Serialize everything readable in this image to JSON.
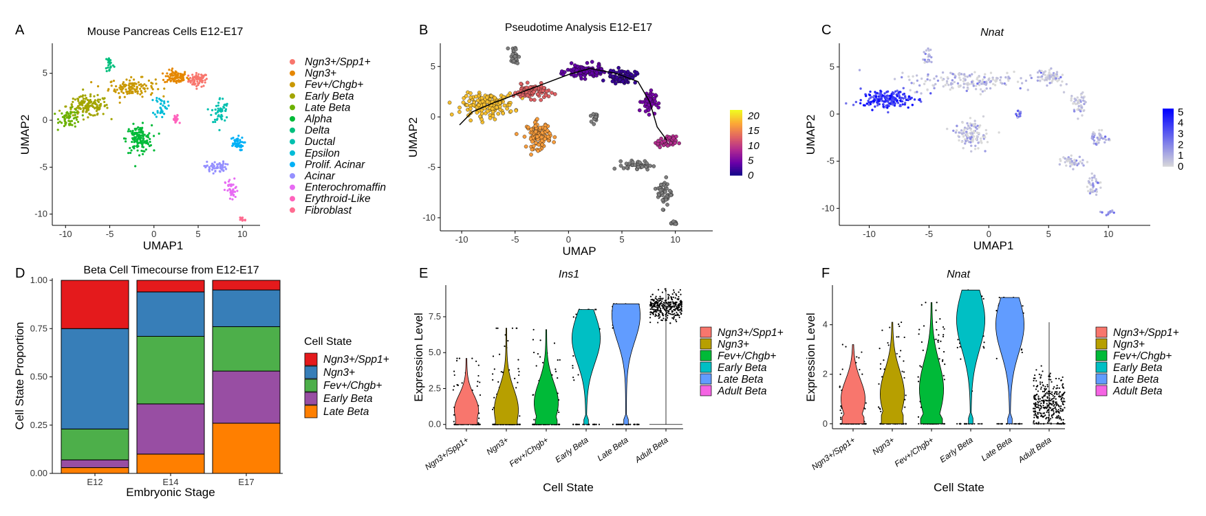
{
  "panel_labels": [
    "A",
    "B",
    "C",
    "D",
    "E",
    "F"
  ],
  "legend_state_title": "Cell State",
  "chart_data": [
    {
      "id": "A",
      "type": "scatter",
      "title": "Mouse Pancreas Cells E12-E17",
      "xlabel": "UMAP1",
      "ylabel": "UMAP2",
      "xlim": [
        -11.5,
        12
      ],
      "ylim": [
        -11.2,
        8.2
      ],
      "xticks": [
        -10,
        -5,
        0,
        5,
        10
      ],
      "yticks": [
        5,
        0,
        -5,
        -10
      ],
      "legend_position": "right",
      "series": [
        {
          "name": "Ngn3+/Spp1+",
          "color": "#F8766D",
          "center": [
            5.0,
            4.3
          ],
          "spread": [
            0.9,
            0.6
          ],
          "n": 70
        },
        {
          "name": "Ngn3+",
          "color": "#E58700",
          "center": [
            2.5,
            4.6
          ],
          "spread": [
            1.1,
            0.6
          ],
          "n": 90
        },
        {
          "name": "Fev+/Chgb+",
          "color": "#C99800",
          "center": [
            -2.5,
            3.5
          ],
          "spread": [
            2.2,
            0.8
          ],
          "n": 120
        },
        {
          "name": "Early Beta",
          "color": "#A3A500",
          "center": [
            -7.5,
            1.5
          ],
          "spread": [
            2.0,
            0.9
          ],
          "n": 150
        },
        {
          "name": "Late Beta",
          "color": "#6BB100",
          "center": [
            -9.5,
            0.2
          ],
          "spread": [
            1.0,
            0.8
          ],
          "n": 60
        },
        {
          "name": "Alpha",
          "color": "#00BA38",
          "center": [
            -1.7,
            -2.0
          ],
          "spread": [
            1.2,
            1.2
          ],
          "n": 140
        },
        {
          "name": "Delta",
          "color": "#00BF7D",
          "center": [
            -5.0,
            6.0
          ],
          "spread": [
            0.4,
            0.8
          ],
          "n": 25
        },
        {
          "name": "Ductal",
          "color": "#00C0AF",
          "center": [
            7.5,
            1.0
          ],
          "spread": [
            0.8,
            1.2
          ],
          "n": 50
        },
        {
          "name": "Epsilon",
          "color": "#00BCD8",
          "center": [
            0.8,
            1.5
          ],
          "spread": [
            0.6,
            1.0
          ],
          "n": 35
        },
        {
          "name": "Prolif. Acinar",
          "color": "#00B0F6",
          "center": [
            9.3,
            -2.5
          ],
          "spread": [
            0.7,
            0.6
          ],
          "n": 45
        },
        {
          "name": "Acinar",
          "color": "#9590FF",
          "center": [
            7.0,
            -5.0
          ],
          "spread": [
            1.0,
            0.5
          ],
          "n": 55
        },
        {
          "name": "Enterochromaffin",
          "color": "#E76BF3",
          "center": [
            8.8,
            -7.5
          ],
          "spread": [
            0.6,
            1.0
          ],
          "n": 40
        },
        {
          "name": "Erythroid-Like",
          "color": "#FF62BC",
          "center": [
            2.5,
            0.0
          ],
          "spread": [
            0.3,
            0.5
          ],
          "n": 18
        },
        {
          "name": "Fibroblast",
          "color": "#FF6C91",
          "center": [
            10.0,
            -10.5
          ],
          "spread": [
            0.4,
            0.2
          ],
          "n": 15
        }
      ]
    },
    {
      "id": "B",
      "type": "scatter",
      "title": "Pseudotime Analysis E12-E17",
      "xlabel": "UMAP",
      "ylabel": "UMAP2",
      "xlim": [
        -12,
        13.5
      ],
      "ylim": [
        -11.3,
        7.3
      ],
      "xticks": [
        -10,
        -5,
        0,
        5,
        10
      ],
      "yticks": [
        5,
        0,
        -5,
        -10
      ],
      "colorbar": {
        "ticks": [
          20,
          15,
          10,
          5,
          0
        ],
        "range": [
          0,
          22
        ],
        "colors": [
          "#0D0887",
          "#6A00A8",
          "#B12A90",
          "#E16462",
          "#FCA636",
          "#F0F921"
        ]
      },
      "na_color": "#7F7F7F"
    },
    {
      "id": "C",
      "type": "scatter",
      "title": "Nnat",
      "xlabel": "UMAP1",
      "ylabel": "UMAP2",
      "xlim": [
        -12.5,
        13.5
      ],
      "ylim": [
        -11.8,
        7.5
      ],
      "xticks": [
        -10,
        -5,
        0,
        5,
        10
      ],
      "yticks": [
        5,
        0,
        -5,
        -10
      ],
      "colorbar": {
        "ticks": [
          5,
          4,
          3,
          2,
          1,
          0
        ],
        "range": [
          0,
          5.3
        ],
        "colors": [
          "#D9D9D9",
          "#0000FF"
        ]
      }
    },
    {
      "id": "D",
      "type": "bar",
      "stacked": true,
      "title": "Beta Cell Timecourse from E12-E17",
      "xlabel": "Embryonic Stage",
      "ylabel": "Cell State Proportion",
      "categories": [
        "E12",
        "E14",
        "E17"
      ],
      "ylim": [
        0,
        1
      ],
      "yticks": [
        "0.00",
        "0.25",
        "0.50",
        "0.75",
        "1.00"
      ],
      "series": [
        {
          "name": "Ngn3+/Spp1+",
          "color": "#E41A1C",
          "values": [
            0.25,
            0.06,
            0.05
          ]
        },
        {
          "name": "Ngn3+",
          "color": "#377EB8",
          "values": [
            0.52,
            0.23,
            0.19
          ]
        },
        {
          "name": "Fev+/Chgb+",
          "color": "#4DAF4A",
          "values": [
            0.16,
            0.35,
            0.23
          ]
        },
        {
          "name": "Early Beta",
          "color": "#984EA3",
          "values": [
            0.04,
            0.26,
            0.27
          ]
        },
        {
          "name": "Late Beta",
          "color": "#FF7F00",
          "values": [
            0.03,
            0.1,
            0.26
          ]
        }
      ]
    },
    {
      "id": "E",
      "type": "violin",
      "title": "Ins1",
      "xlabel": "Cell State",
      "ylabel": "Expression Level",
      "ylim": [
        -0.3,
        9.7
      ],
      "yticks": [
        "0.0",
        "2.5",
        "5.0",
        "7.5"
      ],
      "categories": [
        "Ngn3+/Spp1+",
        "Ngn3+",
        "Fev+/Chgb+",
        "Early Beta",
        "Late Beta",
        "Adult Beta"
      ],
      "colors": [
        "#F8766D",
        "#B79F00",
        "#00BA38",
        "#00BFC4",
        "#619CFF",
        "#F564E3"
      ],
      "max_values": [
        4.6,
        6.7,
        6.6,
        8.0,
        8.4,
        9.5
      ],
      "modes": [
        1.0,
        1.0,
        1.5,
        6.0,
        7.6,
        8.2
      ]
    },
    {
      "id": "F",
      "type": "violin",
      "title": "Nnat",
      "xlabel": "Cell State",
      "ylabel": "Expression Level",
      "ylim": [
        -0.2,
        5.6
      ],
      "yticks": [
        "0",
        "2",
        "4"
      ],
      "categories": [
        "Ngn3+/Spp1+",
        "Ngn3+",
        "Fev+/Chgb+",
        "Early Beta",
        "Late Beta",
        "Adult Beta"
      ],
      "colors": [
        "#F8766D",
        "#B79F00",
        "#00BA38",
        "#00BFC4",
        "#619CFF",
        "#F564E3"
      ],
      "max_values": [
        3.2,
        4.1,
        4.9,
        5.4,
        5.1,
        4.1
      ],
      "modes": [
        1.0,
        1.2,
        1.4,
        4.2,
        4.0,
        0.8
      ]
    }
  ],
  "legend_violin": {
    "items": [
      "Ngn3+/Spp1+",
      "Ngn3+",
      "Fev+/Chgb+",
      "Early Beta",
      "Late Beta",
      "Adult Beta"
    ],
    "colors": [
      "#F8766D",
      "#B79F00",
      "#00BA38",
      "#00BFC4",
      "#619CFF",
      "#F564E3"
    ]
  }
}
